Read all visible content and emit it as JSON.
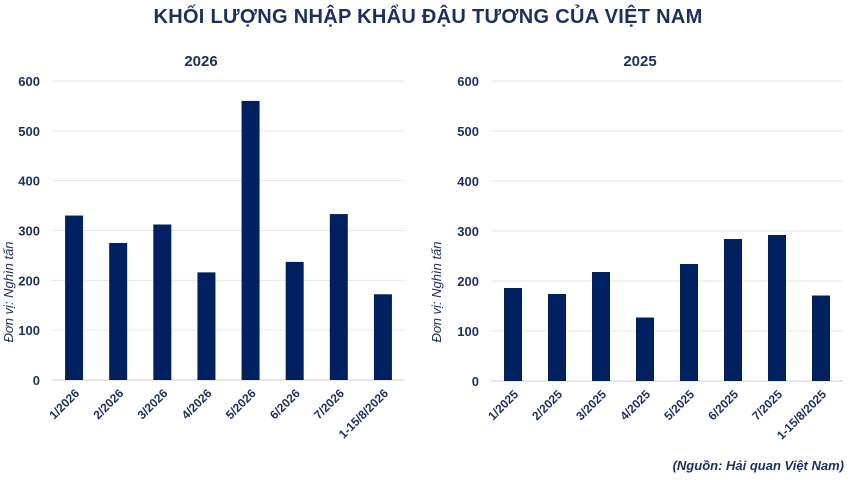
{
  "title": "KHỐI LƯỢNG NHẬP KHẨU ĐẬU TƯƠNG CỦA VIỆT NAM",
  "source": "(Nguồn: Hải quan Việt Nam)",
  "colors": {
    "bar": "#002060",
    "text": "#1c2f5e"
  },
  "chart_data": [
    {
      "type": "bar",
      "title": "2026",
      "xlabel": "",
      "ylabel": "Đơn vị: Nghìn tấn",
      "ylim": [
        0,
        600
      ],
      "yticks": [
        0,
        100,
        200,
        300,
        400,
        500,
        600
      ],
      "grid": true,
      "categories": [
        "1/2026",
        "2/2026",
        "3/2026",
        "4/2026",
        "5/2026",
        "6/2026",
        "7/2026",
        "1-15/8/2026"
      ],
      "values": [
        330,
        275,
        312,
        216,
        560,
        237,
        333,
        172
      ]
    },
    {
      "type": "bar",
      "title": "2025",
      "xlabel": "",
      "ylabel": "Đơn vị: Nghìn tấn",
      "ylim": [
        0,
        600
      ],
      "yticks": [
        0,
        100,
        200,
        300,
        400,
        500,
        600
      ],
      "grid": true,
      "categories": [
        "1/2025",
        "2/2025",
        "3/2025",
        "4/2025",
        "5/2025",
        "6/2025",
        "7/2025",
        "1-15/8/2025"
      ],
      "values": [
        186,
        174,
        218,
        127,
        234,
        284,
        292,
        171
      ]
    }
  ]
}
